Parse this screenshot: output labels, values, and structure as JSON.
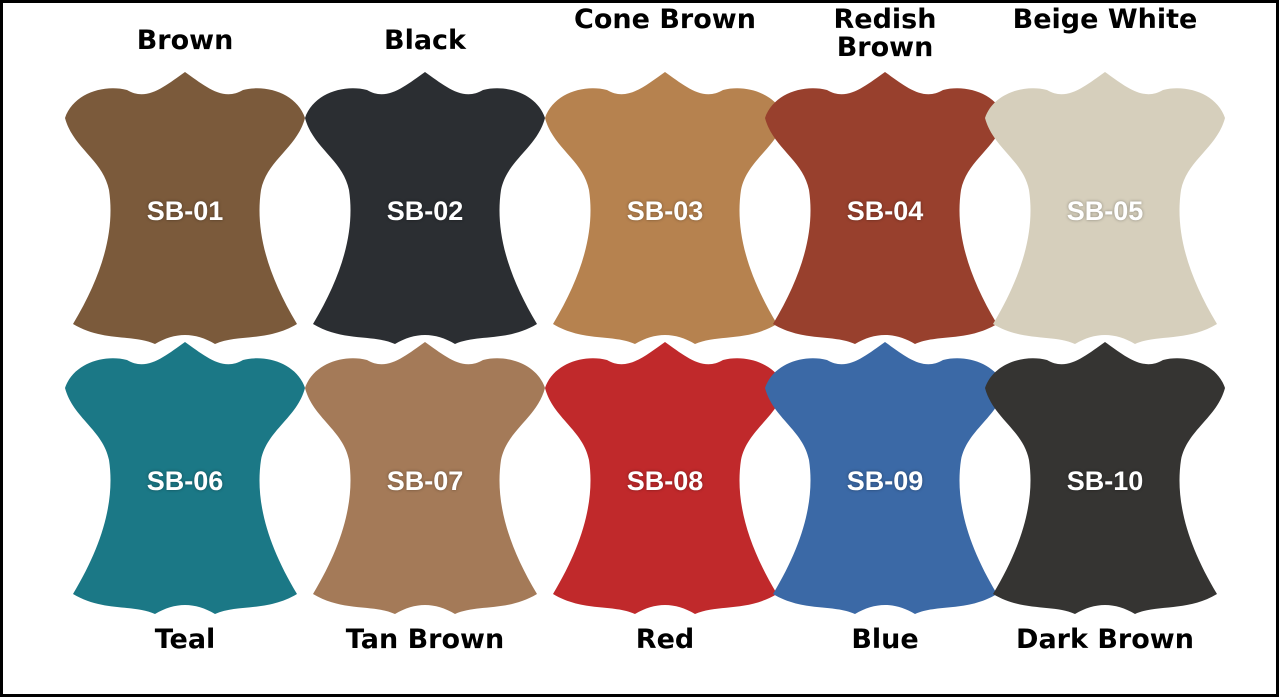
{
  "swatches": [
    {
      "code": "SB-01",
      "name": "Brown",
      "color": "#7b5a3b"
    },
    {
      "code": "SB-02",
      "name": "Black",
      "color": "#2b2e32"
    },
    {
      "code": "SB-03",
      "name": "Cone Brown",
      "color": "#b6824f"
    },
    {
      "code": "SB-04",
      "name": "Redish Brown",
      "color": "#98402d"
    },
    {
      "code": "SB-05",
      "name": "Beige White",
      "color": "#d6cfbc"
    },
    {
      "code": "SB-06",
      "name": "Teal",
      "color": "#1b7886"
    },
    {
      "code": "SB-07",
      "name": "Tan Brown",
      "color": "#a47a58"
    },
    {
      "code": "SB-08",
      "name": "Red",
      "color": "#c0292b"
    },
    {
      "code": "SB-09",
      "name": "Blue",
      "color": "#3b69a6"
    },
    {
      "code": "SB-10",
      "name": "Dark Brown",
      "color": "#353432"
    }
  ]
}
